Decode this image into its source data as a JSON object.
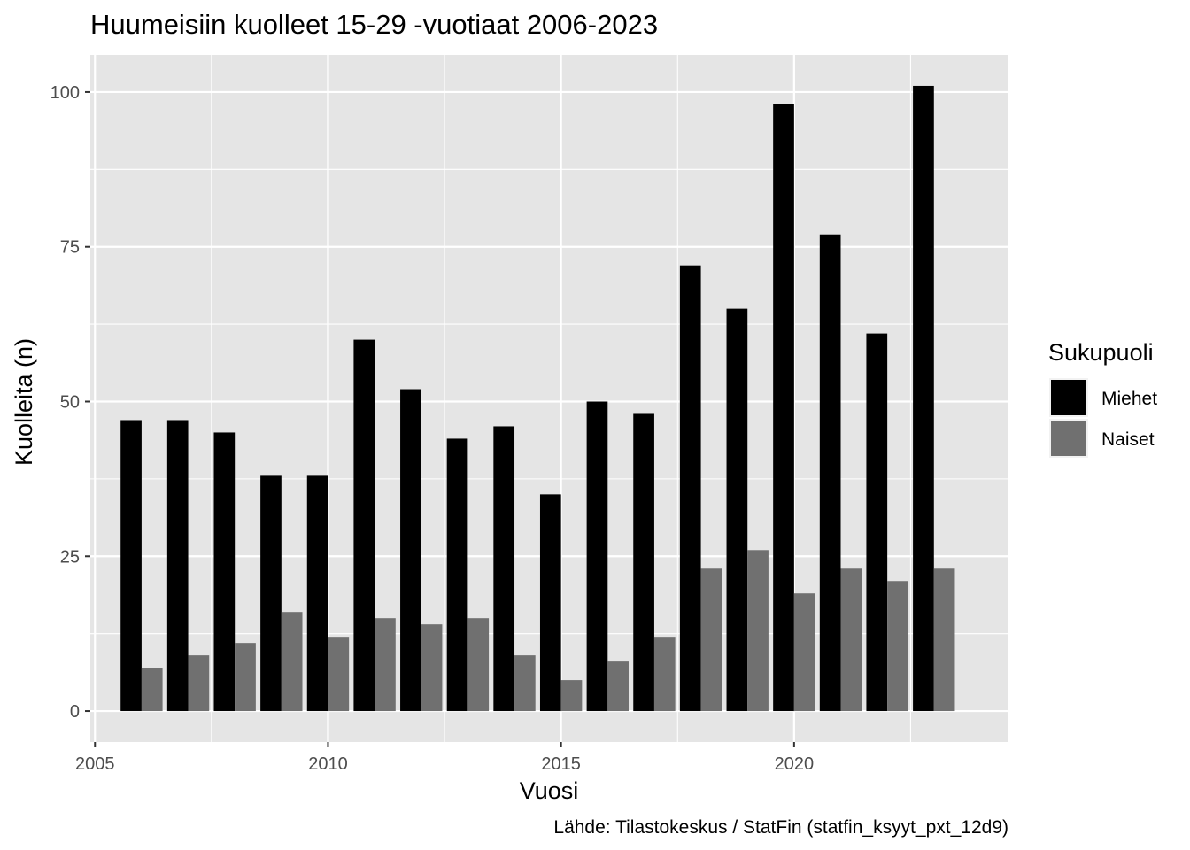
{
  "chart_data": {
    "type": "bar",
    "title": "Huumeisiin kuolleet 15-29 -vuotiaat 2006-2023",
    "xlabel": "Vuosi",
    "ylabel": "Kuolleita (n)",
    "caption": "Lähde: Tilastokeskus / StatFin (statfin_ksyyt_pxt_12d9)",
    "x": [
      2006,
      2007,
      2008,
      2009,
      2010,
      2011,
      2012,
      2013,
      2014,
      2015,
      2016,
      2017,
      2018,
      2019,
      2020,
      2021,
      2022,
      2023
    ],
    "series": [
      {
        "name": "Miehet",
        "color": "#000000",
        "values": [
          47,
          47,
          45,
          38,
          38,
          60,
          52,
          44,
          46,
          35,
          50,
          48,
          72,
          65,
          98,
          77,
          61,
          101
        ]
      },
      {
        "name": "Naiset",
        "color": "#707070",
        "values": [
          7,
          9,
          11,
          16,
          12,
          15,
          14,
          15,
          9,
          5,
          8,
          12,
          23,
          26,
          19,
          23,
          21,
          23
        ]
      }
    ],
    "xlim": [
      2004.9,
      2024.6
    ],
    "ylim": [
      -5,
      106
    ],
    "x_ticks": [
      "2005",
      "2010",
      "2015",
      "2020"
    ],
    "y_ticks": [
      "0",
      "25",
      "50",
      "75",
      "100"
    ],
    "legend": {
      "title": "Sukupuoli",
      "position": "right"
    },
    "grid": true,
    "panel_background": "#e5e5e5",
    "grid_color": "#ffffff"
  }
}
